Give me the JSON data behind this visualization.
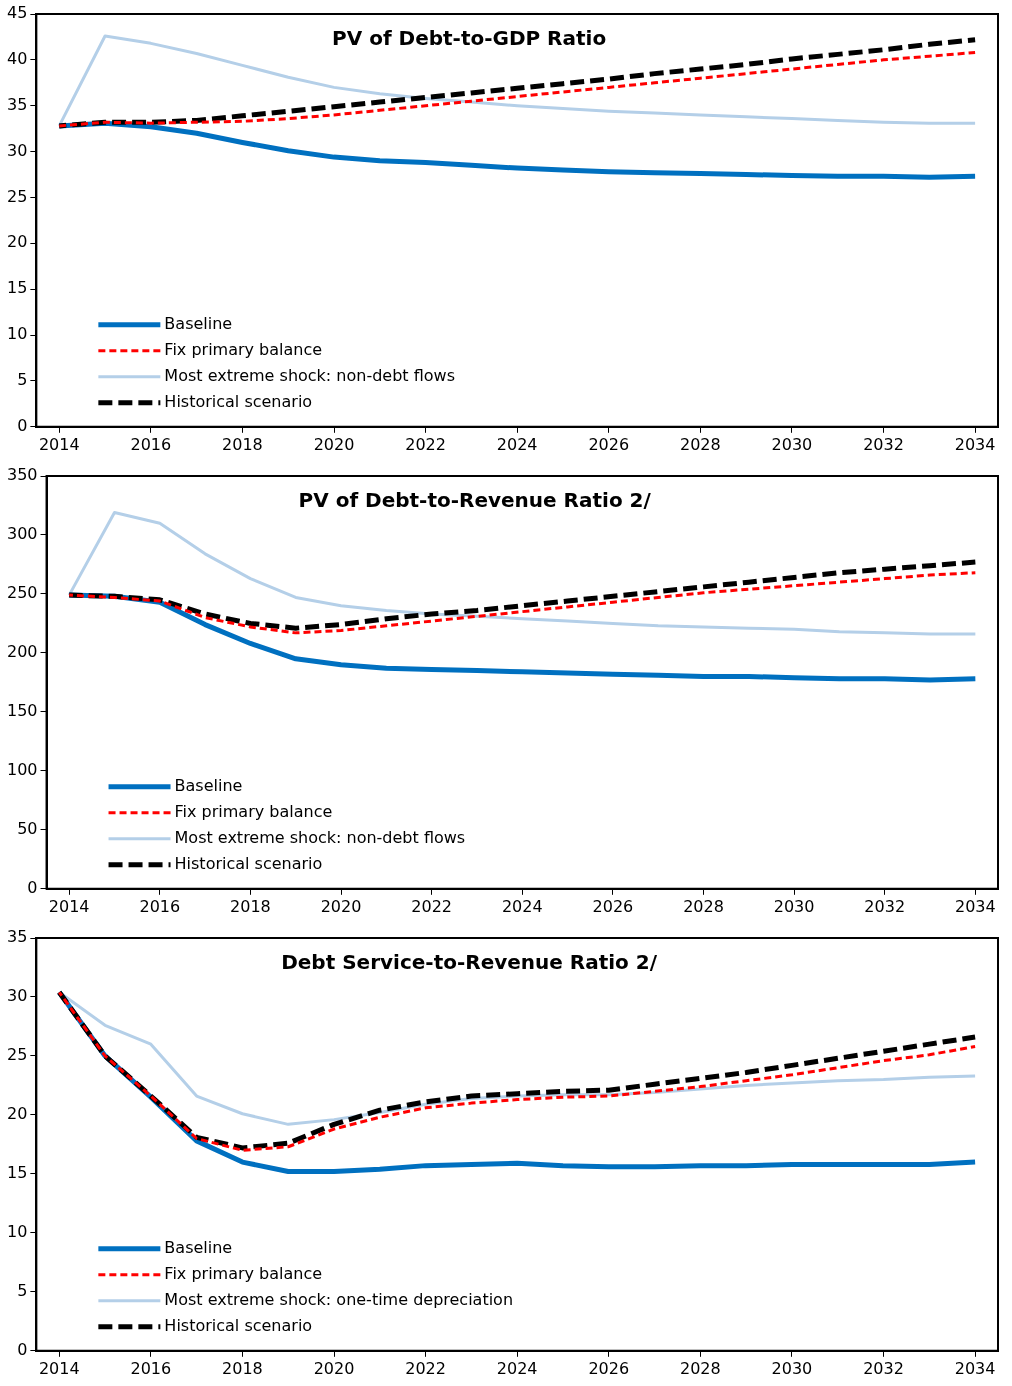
{
  "chart_data": [
    {
      "type": "line",
      "title": "PV of Debt-to-GDP Ratio",
      "x": [
        2014,
        2015,
        2016,
        2017,
        2018,
        2019,
        2020,
        2021,
        2022,
        2023,
        2024,
        2025,
        2026,
        2027,
        2028,
        2029,
        2030,
        2031,
        2032,
        2033,
        2034
      ],
      "xlim": [
        2013.5,
        2034.5
      ],
      "xticks": [
        2014,
        2016,
        2018,
        2020,
        2022,
        2024,
        2026,
        2028,
        2030,
        2032,
        2034
      ],
      "ylim": [
        0,
        45
      ],
      "yticks": [
        0,
        5,
        10,
        15,
        20,
        25,
        30,
        35,
        40,
        45
      ],
      "grid": false,
      "legend": "bottom left",
      "marker": "none",
      "series": [
        {
          "name": "Baseline",
          "color": "#0070c0",
          "line_style": "solid",
          "values": [
            32.8,
            33.1,
            32.7,
            32.0,
            31.0,
            30.1,
            29.4,
            29.0,
            28.8,
            28.5,
            28.2,
            28.0,
            27.8,
            27.7,
            27.6,
            27.5,
            27.4,
            27.3,
            27.3,
            27.2,
            27.3
          ]
        },
        {
          "name": "Fix primary balance",
          "color": "#ff0000",
          "line_style": "dashed",
          "values": [
            32.8,
            33.2,
            33.1,
            33.2,
            33.3,
            33.6,
            34.0,
            34.5,
            35.0,
            35.5,
            36.0,
            36.5,
            37.0,
            37.5,
            38.0,
            38.5,
            39.0,
            39.5,
            40.0,
            40.4,
            40.8
          ]
        },
        {
          "name": "Most extreme shock: non-debt flows",
          "color": "#b4cfe8",
          "line_style": "solid",
          "values": [
            32.8,
            42.6,
            41.8,
            40.7,
            39.4,
            38.1,
            37.0,
            36.3,
            35.8,
            35.4,
            35.0,
            34.7,
            34.4,
            34.2,
            34.0,
            33.8,
            33.6,
            33.4,
            33.2,
            33.1,
            33.1
          ]
        },
        {
          "name": "Historical scenario",
          "color": "#000000",
          "line_style": "dashed",
          "values": [
            32.8,
            33.2,
            33.2,
            33.4,
            33.9,
            34.4,
            34.9,
            35.4,
            35.9,
            36.4,
            36.9,
            37.4,
            37.9,
            38.5,
            39.0,
            39.5,
            40.1,
            40.6,
            41.1,
            41.7,
            42.2
          ]
        }
      ]
    },
    {
      "type": "line",
      "title": "PV of Debt-to-Revenue Ratio 2/",
      "x": [
        2014,
        2015,
        2016,
        2017,
        2018,
        2019,
        2020,
        2021,
        2022,
        2023,
        2024,
        2025,
        2026,
        2027,
        2028,
        2029,
        2030,
        2031,
        2032,
        2033,
        2034
      ],
      "xlim": [
        2013.5,
        2034.5
      ],
      "xticks": [
        2014,
        2016,
        2018,
        2020,
        2022,
        2024,
        2026,
        2028,
        2030,
        2032,
        2034
      ],
      "ylim": [
        0,
        350
      ],
      "yticks": [
        0,
        50,
        100,
        150,
        200,
        250,
        300,
        350
      ],
      "grid": false,
      "legend": "bottom left",
      "marker": "none",
      "series": [
        {
          "name": "Baseline",
          "color": "#0070c0",
          "line_style": "solid",
          "values": [
            249,
            248,
            243,
            224,
            208,
            195,
            190,
            187,
            186,
            185,
            184,
            183,
            182,
            181,
            180,
            180,
            179,
            178,
            178,
            177,
            178
          ]
        },
        {
          "name": "Fix primary balance",
          "color": "#ff0000",
          "line_style": "dashed",
          "values": [
            249,
            247,
            244,
            230,
            222,
            217,
            219,
            223,
            227,
            231,
            235,
            239,
            243,
            247,
            251,
            254,
            257,
            260,
            263,
            266,
            268
          ]
        },
        {
          "name": "Most extreme shock: non-debt flows",
          "color": "#b4cfe8",
          "line_style": "solid",
          "values": [
            249,
            319,
            310,
            284,
            263,
            247,
            240,
            236,
            233,
            231,
            229,
            227,
            225,
            223,
            222,
            221,
            220,
            218,
            217,
            216,
            216
          ]
        },
        {
          "name": "Historical scenario",
          "color": "#000000",
          "line_style": "dashed",
          "values": [
            249,
            248,
            245,
            233,
            225,
            221,
            224,
            229,
            233,
            236,
            240,
            244,
            248,
            252,
            256,
            260,
            264,
            268,
            271,
            274,
            277
          ]
        }
      ]
    },
    {
      "type": "line",
      "title": "Debt Service-to-Revenue Ratio 2/",
      "x": [
        2014,
        2015,
        2016,
        2017,
        2018,
        2019,
        2020,
        2021,
        2022,
        2023,
        2024,
        2025,
        2026,
        2027,
        2028,
        2029,
        2030,
        2031,
        2032,
        2033,
        2034
      ],
      "xlim": [
        2013.5,
        2034.5
      ],
      "xticks": [
        2014,
        2016,
        2018,
        2020,
        2022,
        2024,
        2026,
        2028,
        2030,
        2032,
        2034
      ],
      "ylim": [
        0,
        35
      ],
      "yticks": [
        0,
        5,
        10,
        15,
        20,
        25,
        30,
        35
      ],
      "grid": false,
      "legend": "bottom left",
      "marker": "none",
      "series": [
        {
          "name": "Baseline",
          "color": "#0070c0",
          "line_style": "solid",
          "values": [
            30.4,
            25.0,
            21.5,
            17.8,
            16.0,
            15.2,
            15.2,
            15.4,
            15.7,
            15.8,
            15.9,
            15.7,
            15.6,
            15.6,
            15.7,
            15.7,
            15.8,
            15.8,
            15.8,
            15.8,
            16.0
          ]
        },
        {
          "name": "Fix primary balance",
          "color": "#ff0000",
          "line_style": "dashed",
          "values": [
            30.4,
            25.0,
            21.6,
            18.0,
            17.0,
            17.3,
            18.8,
            19.8,
            20.6,
            21.0,
            21.3,
            21.5,
            21.6,
            22.0,
            22.4,
            22.9,
            23.4,
            24.0,
            24.6,
            25.1,
            25.8
          ]
        },
        {
          "name": "Most extreme shock: one-time depreciation",
          "color": "#b4cfe8",
          "line_style": "solid",
          "values": [
            30.4,
            27.6,
            26.0,
            21.6,
            20.1,
            19.2,
            19.6,
            20.2,
            20.9,
            21.4,
            21.6,
            21.7,
            21.7,
            21.9,
            22.2,
            22.5,
            22.7,
            22.9,
            23.0,
            23.2,
            23.3
          ]
        },
        {
          "name": "Historical scenario",
          "color": "#000000",
          "line_style": "dashed",
          "values": [
            30.4,
            25.0,
            21.6,
            18.1,
            17.2,
            17.6,
            19.2,
            20.4,
            21.1,
            21.6,
            21.8,
            22.0,
            22.1,
            22.6,
            23.1,
            23.6,
            24.2,
            24.8,
            25.4,
            26.0,
            26.6
          ]
        }
      ]
    }
  ]
}
